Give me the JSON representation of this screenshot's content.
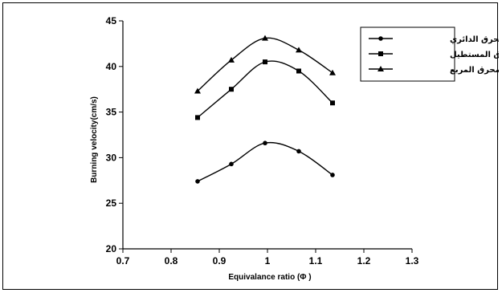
{
  "chart_data": {
    "type": "line",
    "xlabel": "Equivalance ratio (Φ )",
    "ylabel": "Burning velocity(cm/s)",
    "xlim": [
      0.7,
      1.3
    ],
    "ylim": [
      20,
      45
    ],
    "xticks": [
      "0.7",
      "0.8",
      "0.9",
      "1",
      "1.1",
      "1.2",
      "1.3"
    ],
    "yticks": [
      "20",
      "25",
      "30",
      "35",
      "40",
      "45"
    ],
    "grid": false,
    "legend_position": "top-right",
    "x": [
      0.855,
      0.925,
      0.995,
      1.065,
      1.135
    ],
    "series": [
      {
        "name": "المحرق الدائري",
        "marker": "circle",
        "values": [
          27.4,
          29.3,
          31.6,
          30.7,
          28.1
        ]
      },
      {
        "name": "المحرق المستطيل",
        "marker": "square",
        "values": [
          34.4,
          37.5,
          40.5,
          39.5,
          36.0
        ]
      },
      {
        "name": "المحرق المربع",
        "marker": "triangle",
        "values": [
          37.3,
          40.7,
          43.1,
          41.8,
          39.3
        ]
      }
    ]
  }
}
